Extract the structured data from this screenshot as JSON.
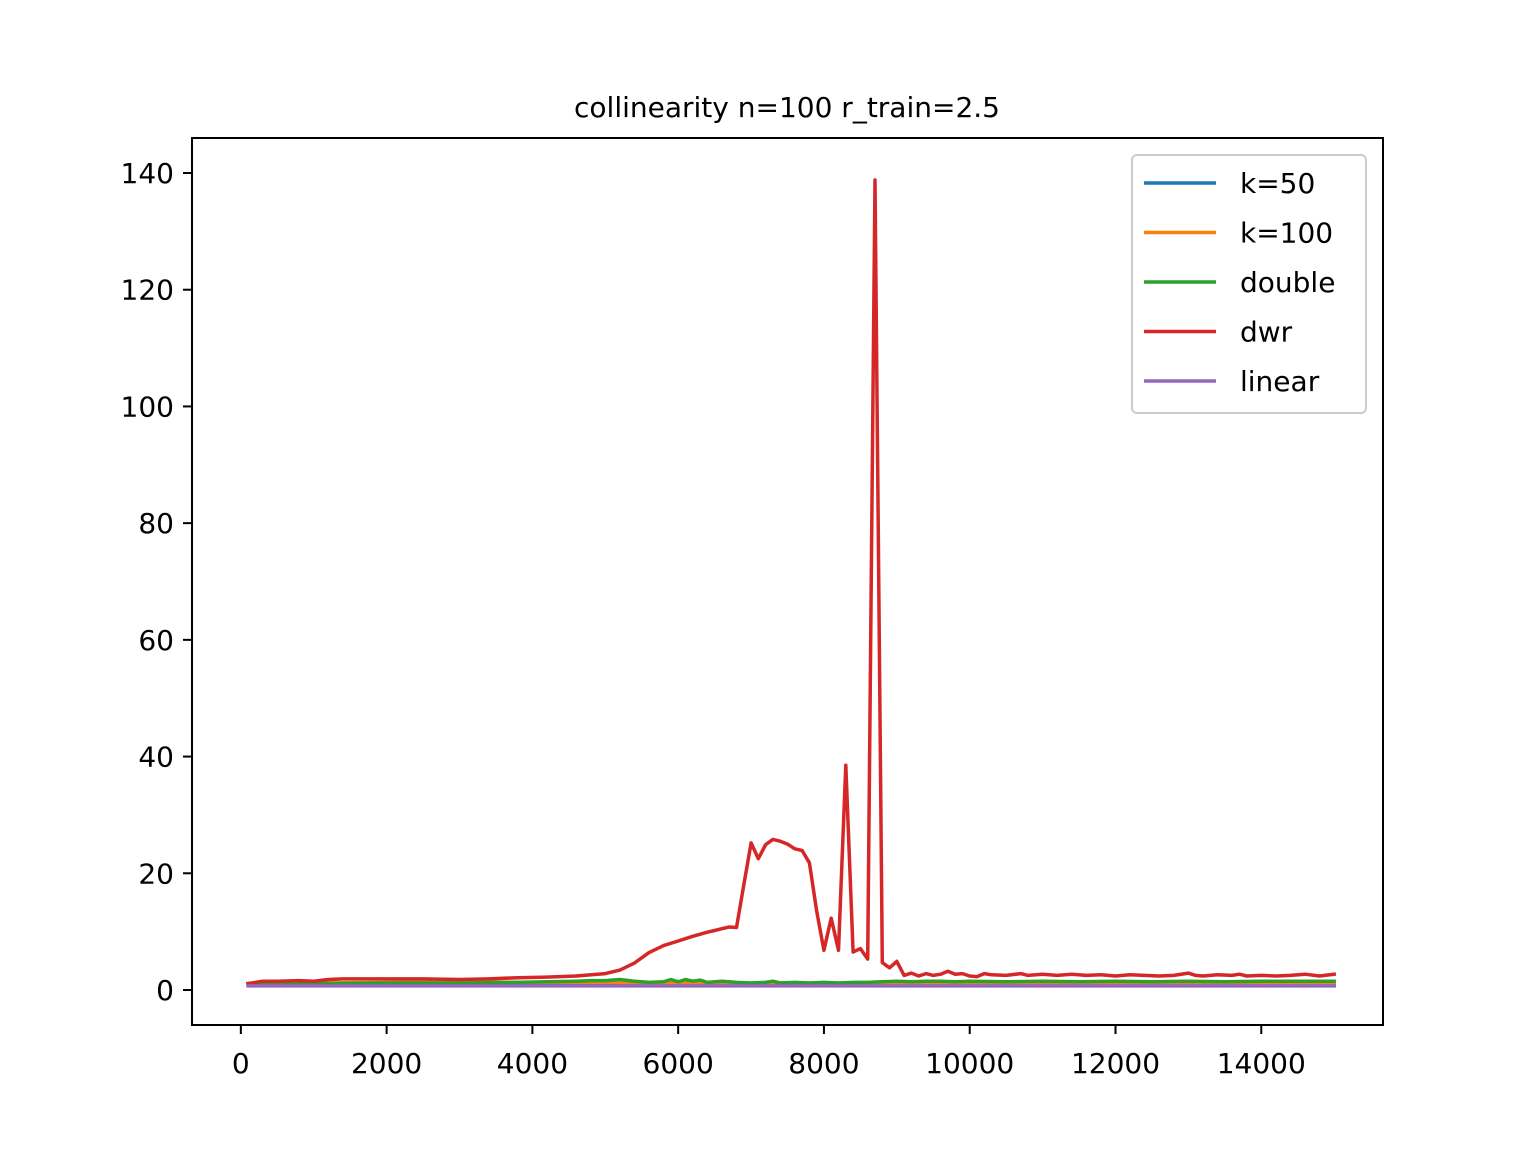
{
  "chart_data": {
    "type": "line",
    "title": "collinearity n=100 r_train=2.5",
    "xlabel": "",
    "ylabel": "",
    "xlim": [
      -670,
      15670
    ],
    "ylim": [
      -6,
      146
    ],
    "xticks": [
      0,
      2000,
      4000,
      6000,
      8000,
      10000,
      12000,
      14000
    ],
    "yticks": [
      0,
      20,
      40,
      60,
      80,
      100,
      120,
      140
    ],
    "legend_position": "top-right",
    "grid": false,
    "series": [
      {
        "name": "k=50",
        "color": "#1f77b4",
        "points": [
          [
            100,
            1.1
          ],
          [
            1000,
            1.1
          ],
          [
            2000,
            1.1
          ],
          [
            4000,
            1.0
          ],
          [
            6000,
            1.0
          ],
          [
            8000,
            1.0
          ],
          [
            10000,
            1.0
          ],
          [
            12000,
            1.0
          ],
          [
            14000,
            1.0
          ],
          [
            15000,
            1.0
          ]
        ]
      },
      {
        "name": "k=100",
        "color": "#ff7f0e",
        "points": [
          [
            100,
            1.1
          ],
          [
            1000,
            1.2
          ],
          [
            2000,
            1.3
          ],
          [
            3000,
            1.4
          ],
          [
            4000,
            1.3
          ],
          [
            5000,
            1.3
          ],
          [
            6000,
            1.2
          ],
          [
            7000,
            1.2
          ],
          [
            8000,
            1.2
          ],
          [
            9000,
            1.2
          ],
          [
            10000,
            1.2
          ],
          [
            12000,
            1.2
          ],
          [
            14000,
            1.2
          ],
          [
            15000,
            1.2
          ]
        ]
      },
      {
        "name": "double",
        "color": "#2ca02c",
        "points": [
          [
            100,
            1.0
          ],
          [
            1000,
            1.1
          ],
          [
            2000,
            1.2
          ],
          [
            3000,
            1.2
          ],
          [
            3800,
            1.3
          ],
          [
            4200,
            1.4
          ],
          [
            4600,
            1.5
          ],
          [
            4800,
            1.6
          ],
          [
            5000,
            1.6
          ],
          [
            5200,
            1.8
          ],
          [
            5400,
            1.5
          ],
          [
            5600,
            1.3
          ],
          [
            5800,
            1.4
          ],
          [
            5900,
            1.8
          ],
          [
            6000,
            1.4
          ],
          [
            6100,
            1.8
          ],
          [
            6200,
            1.5
          ],
          [
            6300,
            1.7
          ],
          [
            6400,
            1.3
          ],
          [
            6600,
            1.5
          ],
          [
            6800,
            1.3
          ],
          [
            7000,
            1.2
          ],
          [
            7200,
            1.3
          ],
          [
            7300,
            1.5
          ],
          [
            7400,
            1.2
          ],
          [
            7600,
            1.3
          ],
          [
            7800,
            1.2
          ],
          [
            8000,
            1.3
          ],
          [
            8200,
            1.2
          ],
          [
            8400,
            1.3
          ],
          [
            8600,
            1.3
          ],
          [
            8800,
            1.4
          ],
          [
            9000,
            1.5
          ],
          [
            9200,
            1.4
          ],
          [
            9400,
            1.5
          ],
          [
            9600,
            1.5
          ],
          [
            9800,
            1.4
          ],
          [
            10000,
            1.5
          ],
          [
            10500,
            1.4
          ],
          [
            11000,
            1.5
          ],
          [
            11500,
            1.4
          ],
          [
            12000,
            1.5
          ],
          [
            12500,
            1.4
          ],
          [
            13000,
            1.5
          ],
          [
            13500,
            1.4
          ],
          [
            14000,
            1.5
          ],
          [
            14500,
            1.5
          ],
          [
            15000,
            1.5
          ]
        ]
      },
      {
        "name": "dwr",
        "color": "#d62728",
        "points": [
          [
            100,
            1.1
          ],
          [
            300,
            1.5
          ],
          [
            500,
            1.5
          ],
          [
            800,
            1.6
          ],
          [
            1000,
            1.5
          ],
          [
            1200,
            1.8
          ],
          [
            1400,
            1.9
          ],
          [
            1800,
            1.9
          ],
          [
            2500,
            1.9
          ],
          [
            3000,
            1.8
          ],
          [
            3400,
            1.9
          ],
          [
            3800,
            2.1
          ],
          [
            4200,
            2.2
          ],
          [
            4600,
            2.4
          ],
          [
            5000,
            2.8
          ],
          [
            5200,
            3.4
          ],
          [
            5400,
            4.6
          ],
          [
            5600,
            6.4
          ],
          [
            5800,
            7.6
          ],
          [
            6000,
            8.4
          ],
          [
            6200,
            9.2
          ],
          [
            6400,
            9.9
          ],
          [
            6500,
            10.2
          ],
          [
            6600,
            10.5
          ],
          [
            6700,
            10.8
          ],
          [
            6800,
            10.7
          ],
          [
            6900,
            18.0
          ],
          [
            7000,
            25.2
          ],
          [
            7100,
            22.5
          ],
          [
            7200,
            24.9
          ],
          [
            7300,
            25.8
          ],
          [
            7400,
            25.5
          ],
          [
            7500,
            25.0
          ],
          [
            7600,
            24.2
          ],
          [
            7700,
            23.9
          ],
          [
            7800,
            21.8
          ],
          [
            7900,
            13.5
          ],
          [
            8000,
            6.8
          ],
          [
            8100,
            12.3
          ],
          [
            8200,
            6.8
          ],
          [
            8300,
            38.5
          ],
          [
            8400,
            6.5
          ],
          [
            8500,
            7.1
          ],
          [
            8600,
            5.3
          ],
          [
            8700,
            138.8
          ],
          [
            8800,
            4.7
          ],
          [
            8900,
            3.8
          ],
          [
            9000,
            4.9
          ],
          [
            9100,
            2.5
          ],
          [
            9200,
            2.9
          ],
          [
            9300,
            2.4
          ],
          [
            9400,
            2.8
          ],
          [
            9500,
            2.5
          ],
          [
            9600,
            2.7
          ],
          [
            9700,
            3.2
          ],
          [
            9800,
            2.7
          ],
          [
            9900,
            2.8
          ],
          [
            10000,
            2.4
          ],
          [
            10100,
            2.3
          ],
          [
            10200,
            2.8
          ],
          [
            10300,
            2.6
          ],
          [
            10500,
            2.5
          ],
          [
            10700,
            2.8
          ],
          [
            10800,
            2.5
          ],
          [
            11000,
            2.7
          ],
          [
            11200,
            2.5
          ],
          [
            11400,
            2.7
          ],
          [
            11600,
            2.5
          ],
          [
            11800,
            2.6
          ],
          [
            12000,
            2.4
          ],
          [
            12200,
            2.6
          ],
          [
            12400,
            2.5
          ],
          [
            12600,
            2.4
          ],
          [
            12800,
            2.5
          ],
          [
            13000,
            2.9
          ],
          [
            13100,
            2.5
          ],
          [
            13200,
            2.4
          ],
          [
            13400,
            2.6
          ],
          [
            13600,
            2.5
          ],
          [
            13700,
            2.7
          ],
          [
            13800,
            2.4
          ],
          [
            14000,
            2.5
          ],
          [
            14200,
            2.4
          ],
          [
            14400,
            2.5
          ],
          [
            14600,
            2.7
          ],
          [
            14800,
            2.4
          ],
          [
            15000,
            2.7
          ]
        ]
      },
      {
        "name": "linear",
        "color": "#9467bd",
        "points": [
          [
            100,
            0.7
          ],
          [
            2000,
            0.7
          ],
          [
            4000,
            0.7
          ],
          [
            6000,
            0.7
          ],
          [
            8000,
            0.7
          ],
          [
            10000,
            0.7
          ],
          [
            12000,
            0.7
          ],
          [
            14000,
            0.7
          ],
          [
            15000,
            0.7
          ]
        ]
      }
    ]
  }
}
